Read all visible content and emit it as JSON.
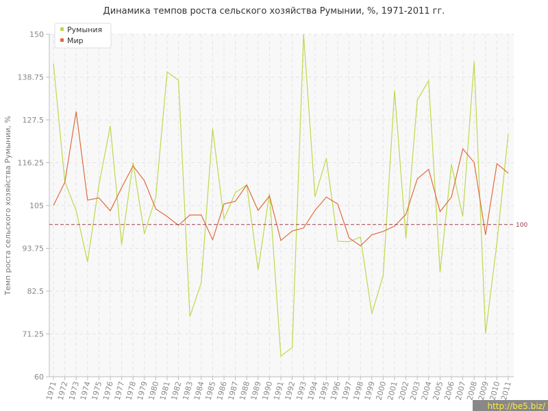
{
  "chart_data": {
    "type": "line",
    "title": "Динамика темпов роста сельского хозяйства Румынии, %, 1971-2011 гг.",
    "y_label": "Темп роста сельского хозяйства Румынии, %",
    "categories": [
      "1971",
      "1972",
      "1973",
      "1974",
      "1975",
      "1976",
      "1977",
      "1978",
      "1979",
      "1980",
      "1981",
      "1982",
      "1983",
      "1984",
      "1985",
      "1986",
      "1987",
      "1988",
      "1989",
      "1990",
      "1991",
      "1992",
      "1993",
      "1994",
      "1995",
      "1996",
      "1997",
      "1998",
      "1999",
      "2000",
      "2001",
      "2002",
      "2003",
      "2004",
      "2005",
      "2006",
      "2007",
      "2008",
      "2009",
      "2010",
      "2011"
    ],
    "series": [
      {
        "name": "Румыния",
        "color": "#bcd94a",
        "values": [
          142.3,
          111.3,
          103.6,
          90.2,
          110.4,
          125.9,
          94.7,
          116.3,
          97.6,
          107.2,
          140.1,
          137.9,
          75.8,
          84.7,
          125.2,
          101.4,
          108.4,
          110.4,
          88.1,
          108.2,
          65.4,
          67.7,
          150,
          107.3,
          117.4,
          95.6,
          95.5,
          96.7,
          76.6,
          86.6,
          135.2,
          96.4,
          132.7,
          137.8,
          87.4,
          115.8,
          102.1,
          142.8,
          71.3,
          95.1,
          123.9
        ]
      },
      {
        "name": "Мир",
        "color": "#e06a3c",
        "values": [
          105,
          111.1,
          129.7,
          106.4,
          107,
          103.6,
          109.7,
          115.4,
          111.5,
          104.1,
          102.1,
          99.8,
          102.5,
          102.5,
          96,
          105.4,
          106.1,
          110.4,
          103.7,
          107.5,
          95.8,
          98.3,
          99.1,
          103.7,
          107.2,
          105.4,
          96.5,
          94.4,
          97.3,
          98.2,
          99.6,
          102.7,
          112,
          114.5,
          103.4,
          107.2,
          119.9,
          116.3,
          97.3,
          116,
          113.5
        ]
      }
    ],
    "reference_line": 100,
    "reference_color": "#9b3a4a",
    "ylim": [
      60,
      150
    ],
    "yticks": [
      60,
      71.25,
      82.5,
      93.75,
      105,
      116.25,
      127.5,
      138.75,
      150
    ],
    "grid": true,
    "legend_position": "top-left",
    "watermark": "http://be5.biz/"
  }
}
